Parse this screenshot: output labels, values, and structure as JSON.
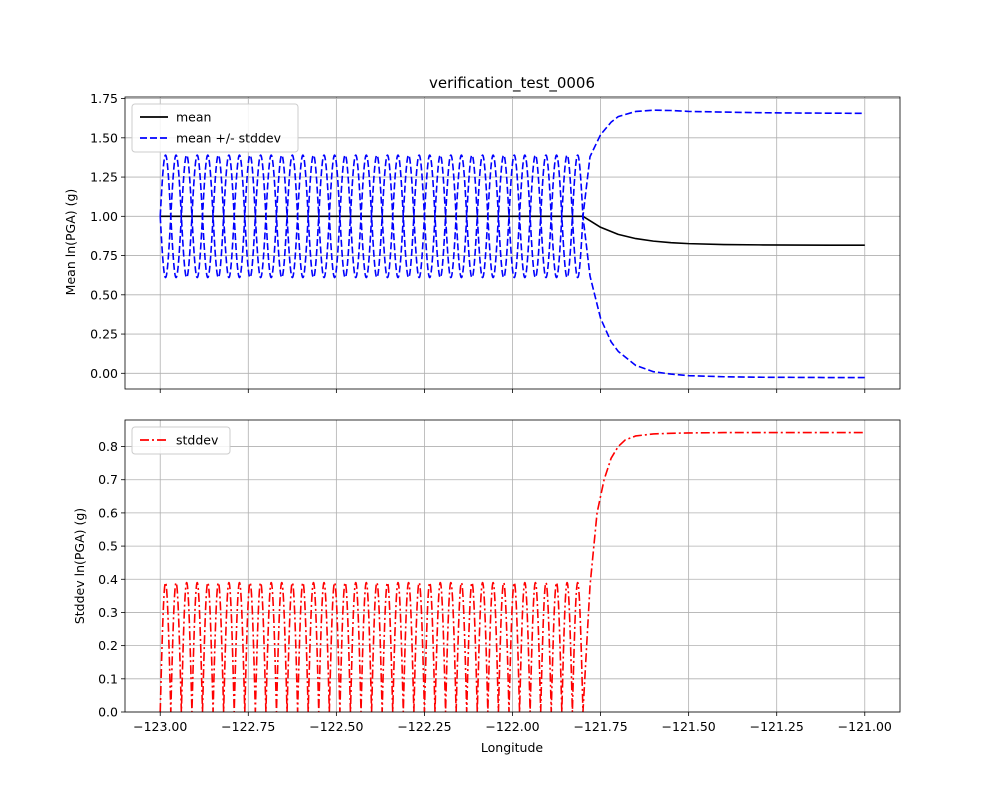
{
  "chart_data": [
    {
      "type": "line",
      "title": "verification_test_0006",
      "xlabel": "",
      "ylabel": "Mean ln(PGA) (g)",
      "xlim": [
        -123.1,
        -120.9
      ],
      "ylim": [
        -0.1,
        1.76
      ],
      "xticks": [
        -123.0,
        -122.75,
        -122.5,
        -122.25,
        -122.0,
        -121.75,
        -121.5,
        -121.25,
        -121.0
      ],
      "yticks": [
        0.0,
        0.25,
        0.5,
        0.75,
        1.0,
        1.25,
        1.5,
        1.75
      ],
      "ytick_labels": [
        "0.00",
        "0.25",
        "0.50",
        "0.75",
        "1.00",
        "1.25",
        "1.50",
        "1.75"
      ],
      "grid": true,
      "legend_position": "upper-left",
      "series": [
        {
          "name": "mean",
          "color": "#000000",
          "style": "solid",
          "x": [
            -123.0,
            -121.8,
            -121.75,
            -121.7,
            -121.65,
            -121.6,
            -121.55,
            -121.5,
            -121.4,
            -121.3,
            -121.2,
            -121.1,
            -121.0
          ],
          "y": [
            1.0,
            1.0,
            0.93,
            0.885,
            0.858,
            0.842,
            0.832,
            0.826,
            0.82,
            0.818,
            0.817,
            0.816,
            0.816
          ]
        },
        {
          "name": "mean +/- stddev",
          "color": "#0000ff",
          "style": "dashed",
          "oscillation": {
            "x_start": -123.0,
            "x_end": -121.8,
            "cycles": 20,
            "amplitude": 0.39
          },
          "upper": {
            "x": [
              -121.8,
              -121.78,
              -121.75,
              -121.72,
              -121.7,
              -121.65,
              -121.6,
              -121.55,
              -121.5,
              -121.4,
              -121.3,
              -121.2,
              -121.1,
              -121.0
            ],
            "y": [
              1.0,
              1.38,
              1.52,
              1.6,
              1.635,
              1.668,
              1.676,
              1.674,
              1.668,
              1.664,
              1.66,
              1.658,
              1.657,
              1.656
            ]
          },
          "lower": {
            "x": [
              -121.8,
              -121.78,
              -121.75,
              -121.72,
              -121.7,
              -121.65,
              -121.6,
              -121.55,
              -121.5,
              -121.4,
              -121.3,
              -121.2,
              -121.1,
              -121.0
            ],
            "y": [
              1.0,
              0.62,
              0.35,
              0.2,
              0.14,
              0.05,
              0.01,
              -0.005,
              -0.015,
              -0.022,
              -0.025,
              -0.026,
              -0.027,
              -0.027
            ]
          }
        }
      ]
    },
    {
      "type": "line",
      "title": "",
      "xlabel": "Longitude",
      "ylabel": "Stddev ln(PGA) (g)",
      "xlim": [
        -123.1,
        -120.9
      ],
      "ylim": [
        0.0,
        0.88
      ],
      "xticks": [
        -123.0,
        -122.75,
        -122.5,
        -122.25,
        -122.0,
        -121.75,
        -121.5,
        -121.25,
        -121.0
      ],
      "xtick_labels": [
        "−123.00",
        "−122.75",
        "−122.50",
        "−122.25",
        "−122.00",
        "−121.75",
        "−121.50",
        "−121.25",
        "−121.00"
      ],
      "yticks": [
        0.0,
        0.1,
        0.2,
        0.3,
        0.4,
        0.5,
        0.6,
        0.7,
        0.8
      ],
      "ytick_labels": [
        "0.0",
        "0.1",
        "0.2",
        "0.3",
        "0.4",
        "0.5",
        "0.6",
        "0.7",
        "0.8"
      ],
      "grid": true,
      "legend_position": "upper-left",
      "series": [
        {
          "name": "stddev",
          "color": "#ff0000",
          "style": "dashdot",
          "oscillation": {
            "x_start": -123.0,
            "x_end": -121.8,
            "cycles": 20,
            "amplitude": 0.39
          },
          "x": [
            -121.8,
            -121.78,
            -121.76,
            -121.74,
            -121.72,
            -121.7,
            -121.68,
            -121.65,
            -121.6,
            -121.55,
            -121.5,
            -121.4,
            -121.3,
            -121.2,
            -121.1,
            -121.0
          ],
          "y": [
            0.0,
            0.38,
            0.6,
            0.7,
            0.765,
            0.8,
            0.82,
            0.832,
            0.838,
            0.84,
            0.841,
            0.842,
            0.842,
            0.842,
            0.842,
            0.842
          ]
        }
      ]
    }
  ]
}
